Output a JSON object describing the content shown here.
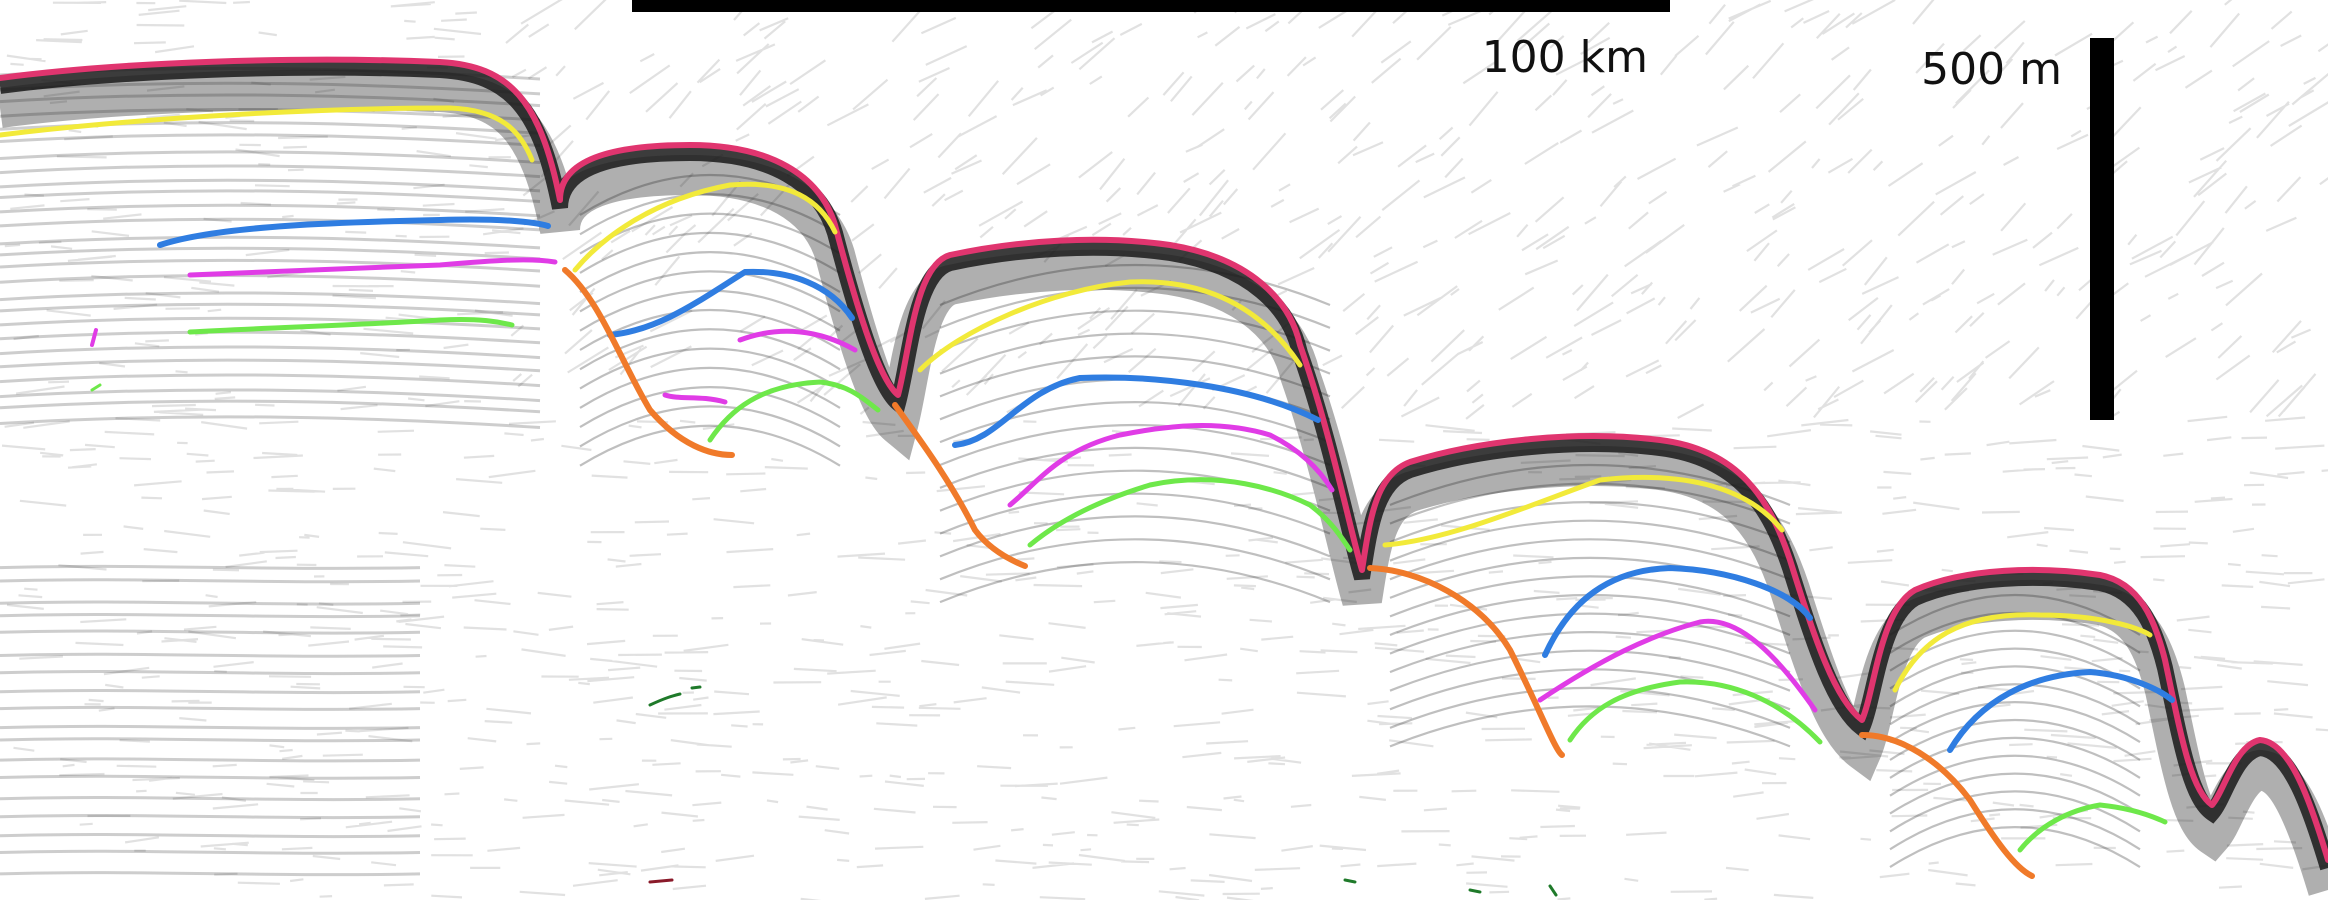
{
  "scale_bars": {
    "horizontal": {
      "label": "100 km",
      "color": "#000000"
    },
    "vertical": {
      "label": "500 m",
      "color": "#000000"
    }
  },
  "horizon_colors": {
    "seafloor": "#e0356f",
    "yellow": "#f2ea3a",
    "blue": "#2f7de1",
    "magenta": "#e03ce6",
    "green": "#6ee84a",
    "orange": "#f07a2a",
    "dark_green": "#1f7a2a",
    "dark_red": "#8a1a2a"
  },
  "background": {
    "paper": "#ffffff",
    "reflector": "#1a1a1a"
  }
}
